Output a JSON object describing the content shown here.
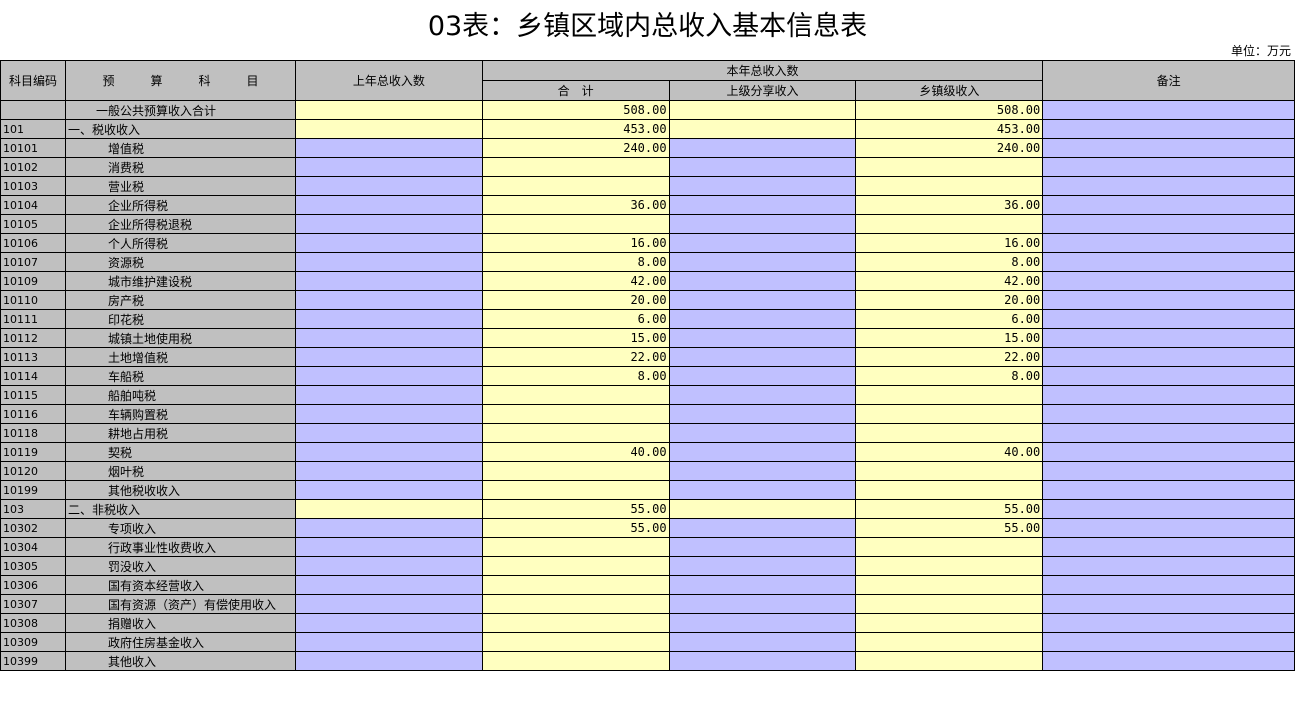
{
  "title": "03表：乡镇区域内总收入基本信息表",
  "unit": "单位：万元",
  "headers": {
    "code": "科目编码",
    "subject": "预　　　算　　　科　　　目",
    "last_year": "上年总收入数",
    "this_year": "本年总收入数",
    "total": "合　计",
    "upper_share": "上级分享收入",
    "township": "乡镇级收入",
    "remark": "备注"
  },
  "colors": {
    "header": "#c0c0c0",
    "input": "#c0c0ff",
    "computed": "#ffffc0"
  },
  "rows": [
    {
      "code": "",
      "name": "一般公共预算收入合计",
      "level": "total",
      "total": "508.00",
      "upper": "",
      "town": "508.00"
    },
    {
      "code": "101",
      "name": "一、税收收入",
      "level": "0",
      "total": "453.00",
      "upper": "",
      "town": "453.00"
    },
    {
      "code": "10101",
      "name": "增值税",
      "level": "1",
      "total": "240.00",
      "upper": "",
      "town": "240.00"
    },
    {
      "code": "10102",
      "name": "消费税",
      "level": "1",
      "total": "",
      "upper": "",
      "town": ""
    },
    {
      "code": "10103",
      "name": "营业税",
      "level": "1",
      "total": "",
      "upper": "",
      "town": ""
    },
    {
      "code": "10104",
      "name": "企业所得税",
      "level": "1",
      "total": "36.00",
      "upper": "",
      "town": "36.00"
    },
    {
      "code": "10105",
      "name": "企业所得税退税",
      "level": "1",
      "total": "",
      "upper": "",
      "town": ""
    },
    {
      "code": "10106",
      "name": "个人所得税",
      "level": "1",
      "total": "16.00",
      "upper": "",
      "town": "16.00"
    },
    {
      "code": "10107",
      "name": "资源税",
      "level": "1",
      "total": "8.00",
      "upper": "",
      "town": "8.00"
    },
    {
      "code": "10109",
      "name": "城市维护建设税",
      "level": "1",
      "total": "42.00",
      "upper": "",
      "town": "42.00"
    },
    {
      "code": "10110",
      "name": "房产税",
      "level": "1",
      "total": "20.00",
      "upper": "",
      "town": "20.00"
    },
    {
      "code": "10111",
      "name": "印花税",
      "level": "1",
      "total": "6.00",
      "upper": "",
      "town": "6.00"
    },
    {
      "code": "10112",
      "name": "城镇土地使用税",
      "level": "1",
      "total": "15.00",
      "upper": "",
      "town": "15.00"
    },
    {
      "code": "10113",
      "name": "土地增值税",
      "level": "1",
      "total": "22.00",
      "upper": "",
      "town": "22.00"
    },
    {
      "code": "10114",
      "name": "车船税",
      "level": "1",
      "total": "8.00",
      "upper": "",
      "town": "8.00"
    },
    {
      "code": "10115",
      "name": "船舶吨税",
      "level": "1",
      "total": "",
      "upper": "",
      "town": ""
    },
    {
      "code": "10116",
      "name": "车辆购置税",
      "level": "1",
      "total": "",
      "upper": "",
      "town": ""
    },
    {
      "code": "10118",
      "name": "耕地占用税",
      "level": "1",
      "total": "",
      "upper": "",
      "town": ""
    },
    {
      "code": "10119",
      "name": "契税",
      "level": "1",
      "total": "40.00",
      "upper": "",
      "town": "40.00"
    },
    {
      "code": "10120",
      "name": "烟叶税",
      "level": "1",
      "total": "",
      "upper": "",
      "town": ""
    },
    {
      "code": "10199",
      "name": "其他税收收入",
      "level": "1",
      "total": "",
      "upper": "",
      "town": ""
    },
    {
      "code": "103",
      "name": "二、非税收入",
      "level": "0",
      "total": "55.00",
      "upper": "",
      "town": "55.00"
    },
    {
      "code": "10302",
      "name": "专项收入",
      "level": "1",
      "total": "55.00",
      "upper": "",
      "town": "55.00"
    },
    {
      "code": "10304",
      "name": "行政事业性收费收入",
      "level": "1",
      "total": "",
      "upper": "",
      "town": ""
    },
    {
      "code": "10305",
      "name": "罚没收入",
      "level": "1",
      "total": "",
      "upper": "",
      "town": ""
    },
    {
      "code": "10306",
      "name": "国有资本经营收入",
      "level": "1",
      "total": "",
      "upper": "",
      "town": ""
    },
    {
      "code": "10307",
      "name": "国有资源（资产）有偿使用收入",
      "level": "1",
      "total": "",
      "upper": "",
      "town": ""
    },
    {
      "code": "10308",
      "name": "捐赠收入",
      "level": "1",
      "total": "",
      "upper": "",
      "town": ""
    },
    {
      "code": "10309",
      "name": "政府住房基金收入",
      "level": "1",
      "total": "",
      "upper": "",
      "town": ""
    },
    {
      "code": "10399",
      "name": "其他收入",
      "level": "1",
      "total": "",
      "upper": "",
      "town": ""
    }
  ]
}
